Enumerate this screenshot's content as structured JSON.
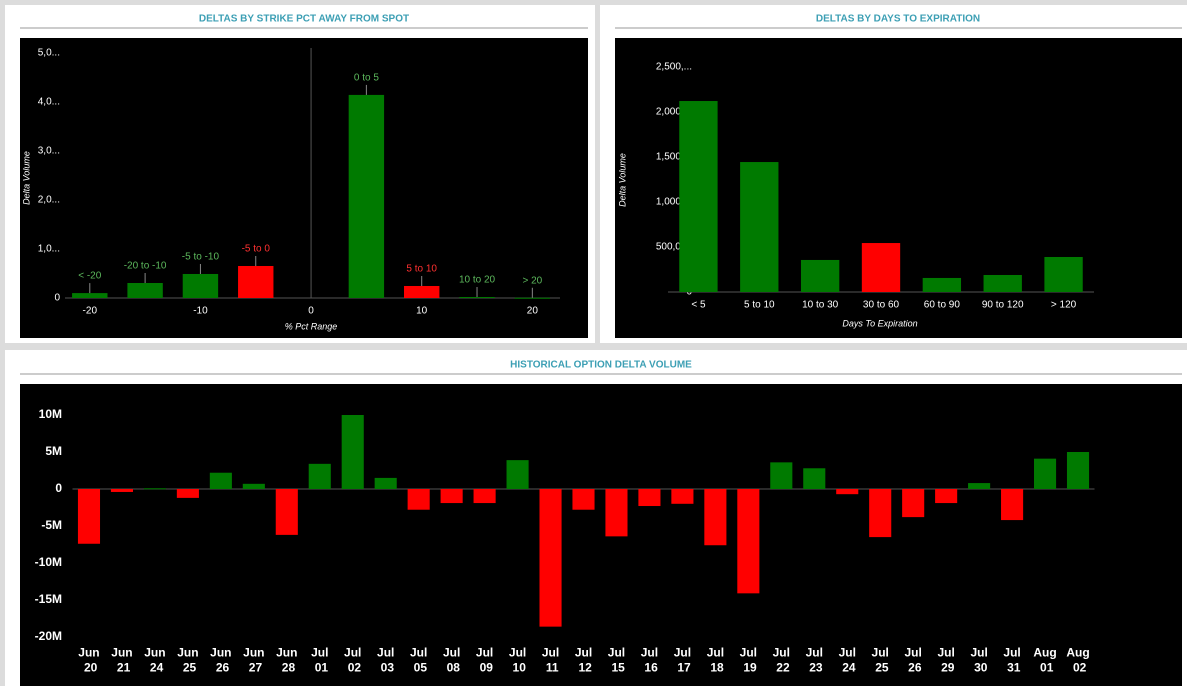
{
  "chart_data": [
    {
      "type": "bar",
      "title": "DELTAS BY STRIKE PCT AWAY FROM SPOT",
      "xlabel": "% Pct Range",
      "ylabel": "Delta Volume",
      "x": [
        -20,
        -15,
        -10,
        -5,
        5,
        10,
        15,
        20
      ],
      "labels": [
        "< -20",
        "-20 to -10",
        "-5 to -10",
        "-5 to 0",
        "0 to 5",
        "5 to 10",
        "10 to 20",
        "> 20"
      ],
      "values": [
        100,
        306,
        490,
        653,
        4143,
        245,
        20,
        5
      ],
      "colors": [
        "#007a00",
        "#007a00",
        "#007a00",
        "#ff0000",
        "#007a00",
        "#ff0000",
        "#007a00",
        "#007a00"
      ],
      "label_colors": [
        "#5cb85c",
        "#5cb85c",
        "#5cb85c",
        "#ff3030",
        "#5cb85c",
        "#ff3030",
        "#5cb85c",
        "#5cb85c"
      ],
      "xlim": [
        -24.5,
        22.5
      ],
      "xticks": [
        -20,
        -10,
        0,
        10,
        20
      ],
      "ylim": [
        0,
        5100
      ],
      "yticks": [
        0,
        {
          "value": 1000,
          "label": "1,0..."
        },
        {
          "value": 2000,
          "label": "2,0..."
        },
        {
          "value": 3000,
          "label": "3,0..."
        },
        {
          "value": 4000,
          "label": "4,0..."
        },
        {
          "value": 5000,
          "label": "5,0..."
        }
      ]
    },
    {
      "type": "bar",
      "title": "DELTAS BY DAYS TO EXPIRATION",
      "xlabel": "Days To Expiration",
      "ylabel": "Delta Volume",
      "categories": [
        "< 5",
        "5 to 10",
        "10 to 30",
        "30 to 60",
        "60 to 90",
        "90 to 120",
        "> 120"
      ],
      "values": [
        2122000,
        1444000,
        356000,
        544000,
        156000,
        189000,
        389000
      ],
      "colors": [
        "#007a00",
        "#007a00",
        "#007a00",
        "#ff0000",
        "#007a00",
        "#007a00",
        "#007a00"
      ],
      "ylim": [
        0,
        2600000
      ],
      "yticks": [
        0,
        {
          "value": 500000,
          "label": "500,000"
        },
        {
          "value": 1000000,
          "label": "1,000,..."
        },
        {
          "value": 1500000,
          "label": "1,500,..."
        },
        {
          "value": 2000000,
          "label": "2,000,..."
        },
        {
          "value": 2500000,
          "label": "2,500,..."
        }
      ]
    },
    {
      "type": "bar",
      "title": "HISTORICAL OPTION DELTA VOLUME",
      "categories": [
        "Jun 20",
        "Jun 21",
        "Jun 24",
        "Jun 25",
        "Jun 26",
        "Jun 27",
        "Jun 28",
        "Jul 01",
        "Jul 02",
        "Jul 03",
        "Jul 05",
        "Jul 08",
        "Jul 09",
        "Jul 10",
        "Jul 11",
        "Jul 12",
        "Jul 15",
        "Jul 16",
        "Jul 17",
        "Jul 18",
        "Jul 19",
        "Jul 22",
        "Jul 23",
        "Jul 24",
        "Jul 25",
        "Jul 26",
        "Jul 29",
        "Jul 30",
        "Jul 31",
        "Aug 01",
        "Aug 02"
      ],
      "values": [
        -7400000,
        -400000,
        100000,
        -1200000,
        2200000,
        700000,
        -6200000,
        3400000,
        10000000,
        1500000,
        -2800000,
        -1900000,
        -1900000,
        3900000,
        -18600000,
        -2800000,
        -6400000,
        -2300000,
        -2000000,
        -7600000,
        -14100000,
        3600000,
        2800000,
        -700000,
        -6500000,
        -3800000,
        -1900000,
        800000,
        -4200000,
        4100000,
        5000000
      ],
      "positive_color": "#007a00",
      "negative_color": "#ff0000",
      "ylim": [
        -20500000,
        14000000
      ],
      "yticks": [
        {
          "value": -20000000,
          "label": "-20M"
        },
        {
          "value": -15000000,
          "label": "-15M"
        },
        {
          "value": -10000000,
          "label": "-10M"
        },
        {
          "value": -5000000,
          "label": "-5M"
        },
        0,
        {
          "value": 5000000,
          "label": "5M"
        },
        {
          "value": 10000000,
          "label": "10M"
        }
      ]
    }
  ]
}
